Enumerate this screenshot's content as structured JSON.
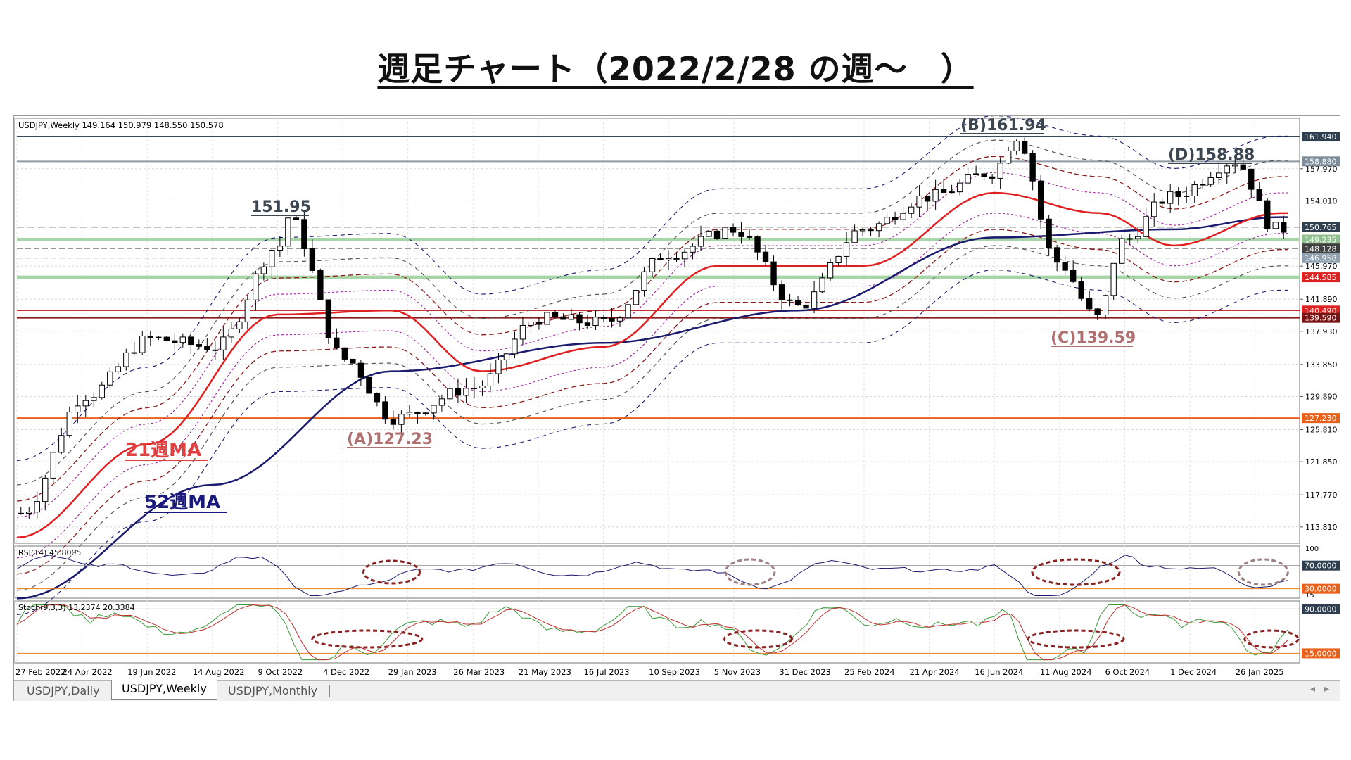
{
  "page_title": "週足チャート（2022/2/28 の週～　）",
  "header": {
    "symbol_info": "USDJPY,Weekly  149.164 150.979 148.550 150.578",
    "rsi_info": "RSI(14) 45.8005",
    "stoch_info": "Stoch(9,3,3) 13.2374 20.3384"
  },
  "annotations": {
    "a_low": "(A)127.23",
    "b_high": "(B)161.94",
    "c_low": "(C)139.59",
    "d_high": "(D)158.88",
    "peak_2022": "151.95",
    "ma21_label": "21週MA",
    "ma52_label": "52週MA"
  },
  "price_axis": {
    "ticks": [
      "157.970",
      "154.010",
      "145.970",
      "141.890",
      "137.930",
      "133.850",
      "129.890",
      "125.810",
      "121.850",
      "117.770",
      "113.810"
    ],
    "boxes": [
      {
        "label": "161.940",
        "value": 161.94,
        "bg": "#2f3f4f",
        "fg": "#ffffff"
      },
      {
        "label": "158.880",
        "value": 158.88,
        "bg": "#7f8c99",
        "fg": "#ffffff"
      },
      {
        "label": "150.765",
        "value": 150.765,
        "bg": "#2f3f4f",
        "fg": "#ffffff"
      },
      {
        "label": "149.235",
        "value": 149.235,
        "bg": "#8fbf8f",
        "fg": "#ffffff"
      },
      {
        "label": "148.128",
        "value": 148.128,
        "bg": "#404040",
        "fg": "#ffffff"
      },
      {
        "label": "146.958",
        "value": 146.958,
        "bg": "#8fa0b0",
        "fg": "#ffffff"
      },
      {
        "label": "144.585",
        "value": 144.585,
        "bg": "#dd2222",
        "fg": "#ffffff"
      },
      {
        "label": "140.490",
        "value": 140.49,
        "bg": "#dd2222",
        "fg": "#ffffff"
      },
      {
        "label": "139.590",
        "value": 139.59,
        "bg": "#7a1515",
        "fg": "#ffffff"
      },
      {
        "label": "127.230",
        "value": 127.23,
        "bg": "#e8601a",
        "fg": "#ffffff"
      }
    ]
  },
  "rsi_axis": {
    "ticks": [
      "100",
      "70.0000",
      "30.0000",
      "15"
    ]
  },
  "stoch_axis": {
    "ticks": [
      "90.0000",
      "15.0000"
    ]
  },
  "date_labels": [
    "27 Feb 2022",
    "24 Apr 2022",
    "19 Jun 2022",
    "14 Aug 2022",
    "9 Oct 2022",
    "4 Dec 2022",
    "29 Jan 2023",
    "26 Mar 2023",
    "21 May 2023",
    "16 Jul 2023",
    "10 Sep 2023",
    "5 Nov 2023",
    "31 Dec 2023",
    "25 Feb 2024",
    "21 Apr 2024",
    "16 Jun 2024",
    "11 Aug 2024",
    "6 Oct 2024",
    "1 Dec 2024",
    "26 Jan 2025"
  ],
  "tabs": [
    {
      "label": "USDJPY,Daily",
      "active": false
    },
    {
      "label": "USDJPY,Weekly",
      "active": true
    },
    {
      "label": "USDJPY,Monthly",
      "active": false
    }
  ],
  "colors": {
    "ma21": "#e02020",
    "ma52": "#1a1a6e",
    "rsi": "#1a1a6e",
    "stoch_main": "#3a9a3a",
    "stoch_signal": "#c03030",
    "level_line": "#e8601a",
    "highlight_circle": "#8b2020"
  },
  "chart_data": {
    "type": "candlestick",
    "title": "",
    "symbol": "USDJPY",
    "timeframe": "Weekly",
    "ylim": [
      111.8,
      164.2
    ],
    "key_levels": [
      161.94,
      158.88,
      150.765,
      149.235,
      148.128,
      146.958,
      144.585,
      140.49,
      139.59,
      127.23
    ],
    "price_path": [
      [
        "2022-02-27",
        115.5
      ],
      [
        "2022-04-24",
        130.0
      ],
      [
        "2022-06-19",
        137.0
      ],
      [
        "2022-08-14",
        136.0
      ],
      [
        "2022-10-09",
        148.5
      ],
      [
        "2022-10-16",
        151.95
      ],
      [
        "2022-12-04",
        134.5
      ],
      [
        "2023-01-15",
        127.23
      ],
      [
        "2023-03-26",
        131.0
      ],
      [
        "2023-05-21",
        139.5
      ],
      [
        "2023-07-16",
        139.0
      ],
      [
        "2023-09-10",
        147.5
      ],
      [
        "2023-11-05",
        150.5
      ],
      [
        "2023-12-31",
        141.0
      ],
      [
        "2024-02-25",
        150.5
      ],
      [
        "2024-04-21",
        154.5
      ],
      [
        "2024-06-16",
        157.5
      ],
      [
        "2024-07-07",
        161.94
      ],
      [
        "2024-08-11",
        146.5
      ],
      [
        "2024-09-15",
        139.59
      ],
      [
        "2024-10-06",
        149.0
      ],
      [
        "2024-11-17",
        154.5
      ],
      [
        "2025-01-12",
        158.88
      ],
      [
        "2025-02-16",
        150.578
      ]
    ],
    "ma21_path": [
      [
        "2022-02-27",
        112.5
      ],
      [
        "2022-06-19",
        124.0
      ],
      [
        "2022-10-09",
        140.0
      ],
      [
        "2023-01-15",
        140.5
      ],
      [
        "2023-04-02",
        133.0
      ],
      [
        "2023-07-16",
        136.0
      ],
      [
        "2023-10-22",
        146.0
      ],
      [
        "2024-02-25",
        146.0
      ],
      [
        "2024-06-16",
        155.0
      ],
      [
        "2024-09-15",
        152.5
      ],
      [
        "2024-11-17",
        148.5
      ],
      [
        "2025-02-16",
        152.5
      ]
    ],
    "ma52_path": [
      [
        "2022-02-27",
        105.0
      ],
      [
        "2022-08-14",
        119.0
      ],
      [
        "2023-01-15",
        133.0
      ],
      [
        "2023-07-16",
        136.5
      ],
      [
        "2023-12-31",
        140.5
      ],
      [
        "2024-06-16",
        149.5
      ],
      [
        "2024-11-17",
        150.5
      ],
      [
        "2025-02-16",
        152.0
      ]
    ],
    "rsi": {
      "levels": [
        70,
        30
      ],
      "range": [
        15,
        100
      ],
      "last": 45.8005
    },
    "stochastic": {
      "levels": [
        90,
        15
      ],
      "range": [
        0,
        100
      ],
      "main_last": 13.2374,
      "signal_last": 20.3384
    }
  }
}
